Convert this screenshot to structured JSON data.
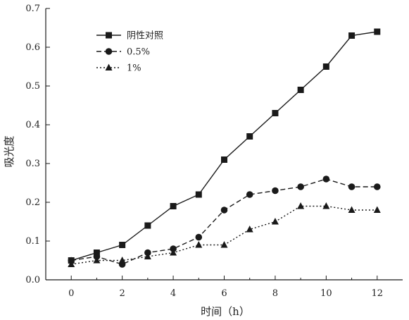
{
  "chart_data": {
    "type": "line",
    "title": "",
    "xlabel": "时间（h）",
    "ylabel": "吸光度",
    "xlim": [
      -1,
      13
    ],
    "ylim": [
      0,
      0.7
    ],
    "xticks": [
      0,
      2,
      4,
      6,
      8,
      10,
      12
    ],
    "yticks": [
      0.0,
      0.1,
      0.2,
      0.3,
      0.4,
      0.5,
      0.6,
      0.7
    ],
    "ytick_labels": [
      "0.0",
      "0.1",
      "0.2",
      "0.3",
      "0.4",
      "0.5",
      "0.6",
      "0.7"
    ],
    "grid": false,
    "legend_position": "top-left",
    "x": [
      0,
      1,
      2,
      3,
      4,
      5,
      6,
      7,
      8,
      9,
      10,
      11,
      12
    ],
    "series": [
      {
        "name": "阴性对照",
        "marker": "square",
        "dash": "solid",
        "values": [
          0.05,
          0.07,
          0.09,
          0.14,
          0.19,
          0.22,
          0.31,
          0.37,
          0.43,
          0.49,
          0.55,
          0.63,
          0.64
        ]
      },
      {
        "name": "0.5%",
        "marker": "circle",
        "dash": "dashed",
        "values": [
          0.05,
          0.06,
          0.04,
          0.07,
          0.08,
          0.11,
          0.18,
          0.22,
          0.23,
          0.24,
          0.26,
          0.24,
          0.24
        ]
      },
      {
        "name": "1%",
        "marker": "triangle",
        "dash": "dotted",
        "values": [
          0.04,
          0.05,
          0.05,
          0.06,
          0.07,
          0.09,
          0.09,
          0.13,
          0.15,
          0.19,
          0.19,
          0.18,
          0.18
        ]
      }
    ],
    "colors": {
      "line": "#1a1a1a",
      "axis": "#1a1a1a"
    }
  }
}
